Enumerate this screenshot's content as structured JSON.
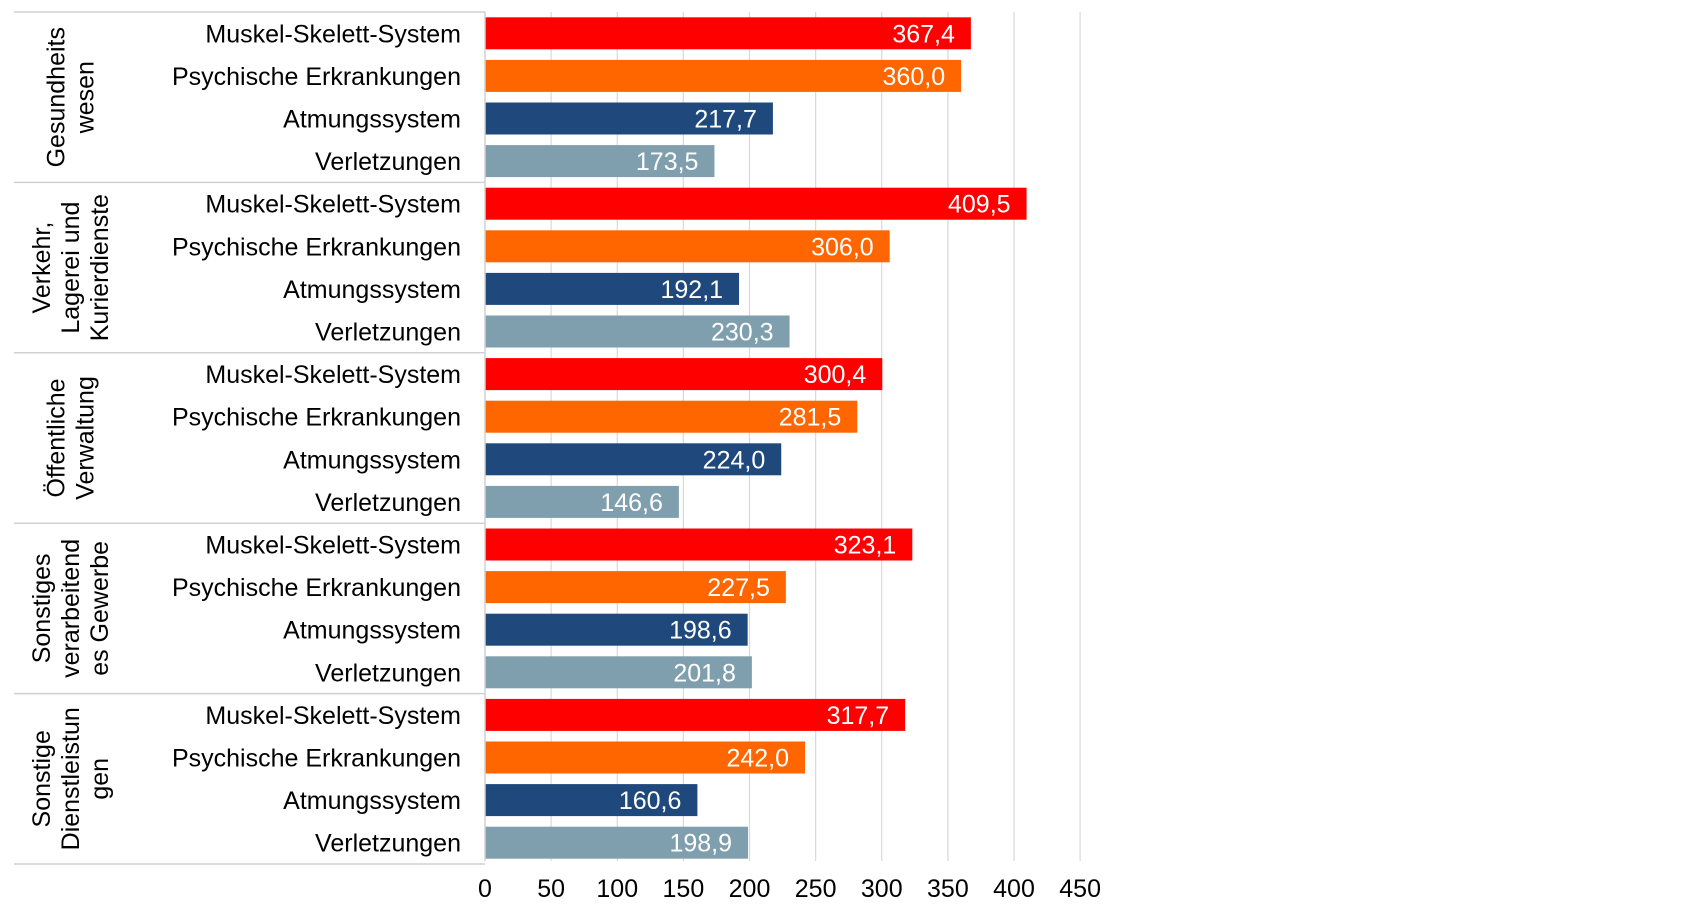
{
  "chart_data": {
    "type": "bar",
    "orientation": "horizontal",
    "title": "",
    "xlabel": "",
    "ylabel": "",
    "xlim": [
      0,
      450
    ],
    "x_ticks": [
      0,
      50,
      100,
      150,
      200,
      250,
      300,
      350,
      400,
      450
    ],
    "grid": "vertical",
    "legend": "none",
    "colors": {
      "Muskel-Skelett-System": "#ff0000",
      "Psychische Erkrankungen": "#ff6600",
      "Atmungssystem": "#1f497d",
      "Verletzungen": "#7f9fae"
    },
    "groups": [
      {
        "name": "Gesundheits wesen",
        "name_lines": [
          "Gesundheits",
          "wesen"
        ],
        "bars": [
          {
            "label": "Muskel-Skelett-System",
            "value": 367.4,
            "value_label": "367,4"
          },
          {
            "label": "Psychische Erkrankungen",
            "value": 360.0,
            "value_label": "360,0"
          },
          {
            "label": "Atmungssystem",
            "value": 217.7,
            "value_label": "217,7"
          },
          {
            "label": "Verletzungen",
            "value": 173.5,
            "value_label": "173,5"
          }
        ]
      },
      {
        "name": "Verkehr, Lagerei und Kurierdienste",
        "name_lines": [
          "Verkehr,",
          "Lagerei und",
          "Kurierdienste"
        ],
        "bars": [
          {
            "label": "Muskel-Skelett-System",
            "value": 409.5,
            "value_label": "409,5"
          },
          {
            "label": "Psychische Erkrankungen",
            "value": 306.0,
            "value_label": "306,0"
          },
          {
            "label": "Atmungssystem",
            "value": 192.1,
            "value_label": "192,1"
          },
          {
            "label": "Verletzungen",
            "value": 230.3,
            "value_label": "230,3"
          }
        ]
      },
      {
        "name": "Öffentliche Verwaltung",
        "name_lines": [
          "Öffentliche",
          "Verwaltung"
        ],
        "bars": [
          {
            "label": "Muskel-Skelett-System",
            "value": 300.4,
            "value_label": "300,4"
          },
          {
            "label": "Psychische Erkrankungen",
            "value": 281.5,
            "value_label": "281,5"
          },
          {
            "label": "Atmungssystem",
            "value": 224.0,
            "value_label": "224,0"
          },
          {
            "label": "Verletzungen",
            "value": 146.6,
            "value_label": "146,6"
          }
        ]
      },
      {
        "name": "Sonstiges verarbeitendes Gewerbe",
        "name_lines": [
          "Sonstiges",
          "verarbeitend",
          "es Gewerbe"
        ],
        "bars": [
          {
            "label": "Muskel-Skelett-System",
            "value": 323.1,
            "value_label": "323,1"
          },
          {
            "label": "Psychische Erkrankungen",
            "value": 227.5,
            "value_label": "227,5"
          },
          {
            "label": "Atmungssystem",
            "value": 198.6,
            "value_label": "198,6"
          },
          {
            "label": "Verletzungen",
            "value": 201.8,
            "value_label": "201,8"
          }
        ]
      },
      {
        "name": "Sonstige Dienstleistungen",
        "name_lines": [
          "Sonstige",
          "Dienstleistun",
          "gen"
        ],
        "bars": [
          {
            "label": "Muskel-Skelett-System",
            "value": 317.7,
            "value_label": "317,7"
          },
          {
            "label": "Psychische Erkrankungen",
            "value": 242.0,
            "value_label": "242,0"
          },
          {
            "label": "Atmungssystem",
            "value": 160.6,
            "value_label": "160,6"
          },
          {
            "label": "Verletzungen",
            "value": 198.9,
            "value_label": "198,9"
          }
        ]
      }
    ]
  }
}
